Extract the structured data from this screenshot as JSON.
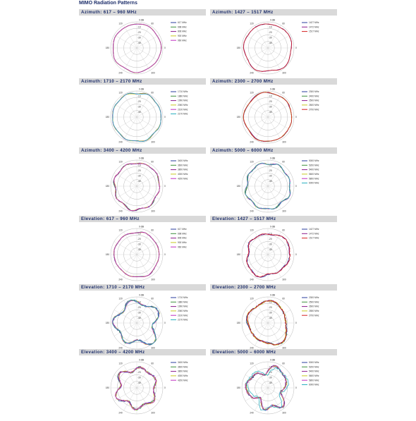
{
  "page": {
    "title": "MIMO Radiation Patterns"
  },
  "chart_data": [
    {
      "type": "polar",
      "title": "Azimuth:  617 – 960 MHz",
      "angle_labels": [
        "0 dBi",
        "60",
        "120",
        "180",
        "240",
        "300",
        "0"
      ],
      "radial_labels": [
        "-10",
        "-20",
        "-30",
        "-40"
      ],
      "legend": [
        "617 MHz",
        "698 MHz",
        "806 MHz",
        "900 MHz",
        "960 MHz"
      ],
      "colors": [
        "#2a3c9e",
        "#3c8f3c",
        "#8b1a8b",
        "#c8c820",
        "#c030c0"
      ],
      "amplitude": 0.92,
      "ripple": 0.03,
      "seed": 1
    },
    {
      "type": "polar",
      "title": "Azimuth: 1427 – 1517 MHz",
      "angle_labels": [
        "0 dBi",
        "60",
        "120",
        "180",
        "240",
        "300",
        "0"
      ],
      "radial_labels": [
        "-10",
        "-20",
        "-30",
        "-40"
      ],
      "legend": [
        "1427 MHz",
        "1472 MHz",
        "1517 MHz"
      ],
      "colors": [
        "#2a3c9e",
        "#8b1a8b",
        "#d42020"
      ],
      "amplitude": 0.92,
      "ripple": 0.05,
      "seed": 2
    },
    {
      "type": "polar",
      "title": "Azimuth: 1710 – 2170 MHz",
      "angle_labels": [
        "0 dBi",
        "60",
        "120",
        "180",
        "240",
        "300",
        "0"
      ],
      "radial_labels": [
        "-10",
        "-20",
        "-30",
        "-40"
      ],
      "legend": [
        "1710 MHz",
        "1880 MHz",
        "1990 MHz",
        "2060 MHz",
        "2100 MHz",
        "2170 MHz"
      ],
      "colors": [
        "#2a3c9e",
        "#3c8f3c",
        "#8b1a8b",
        "#c8c820",
        "#c030c0",
        "#2ab0c0"
      ],
      "amplitude": 0.93,
      "ripple": 0.03,
      "seed": 3
    },
    {
      "type": "polar",
      "title": "Azimuth: 2300 – 2700 MHz",
      "angle_labels": [
        "0 dBi",
        "60",
        "120",
        "180",
        "240",
        "300",
        "0"
      ],
      "radial_labels": [
        "-10",
        "-20",
        "-30",
        "-40"
      ],
      "legend": [
        "2300 MHz",
        "2400 MHz",
        "2500 MHz",
        "2600 MHz",
        "2700 MHz"
      ],
      "colors": [
        "#2a3c9e",
        "#3c8f3c",
        "#8b1a8b",
        "#c8c820",
        "#d42020"
      ],
      "amplitude": 0.92,
      "ripple": 0.04,
      "seed": 4
    },
    {
      "type": "polar",
      "title": "Azimuth: 3400 – 4200 MHz",
      "angle_labels": [
        "0 dBi",
        "60",
        "120",
        "180",
        "240",
        "300",
        "0"
      ],
      "radial_labels": [
        "-10",
        "-20",
        "-30",
        "-40"
      ],
      "legend": [
        "3400 MHz",
        "3600 MHz",
        "3800 MHz",
        "4000 MHz",
        "4200 MHz"
      ],
      "colors": [
        "#2a3c9e",
        "#3c8f3c",
        "#8b1a8b",
        "#c8c820",
        "#c030c0"
      ],
      "amplitude": 0.88,
      "ripple": 0.07,
      "seed": 5
    },
    {
      "type": "polar",
      "title": "Azimuth: 5000 – 6000 MHz",
      "angle_labels": [
        "0 dBi",
        "60",
        "120",
        "180",
        "240",
        "300",
        "0"
      ],
      "radial_labels": [
        "-10",
        "-20",
        "-30",
        "-40"
      ],
      "legend": [
        "5000 MHz",
        "5200 MHz",
        "5400 MHz",
        "5600 MHz",
        "5800 MHz",
        "6000 MHz"
      ],
      "colors": [
        "#2a3c9e",
        "#3c8f3c",
        "#8b1a8b",
        "#c8c820",
        "#c030c0",
        "#2ab0c0"
      ],
      "amplitude": 0.86,
      "ripple": 0.08,
      "seed": 6
    },
    {
      "type": "polar",
      "title": "Elevation:  617 – 960 MHz",
      "angle_labels": [
        "0 dBi",
        "60",
        "120",
        "180",
        "240",
        "300",
        "0"
      ],
      "radial_labels": [
        "-10",
        "-20",
        "-30",
        "-40"
      ],
      "legend": [
        "617 MHz",
        "698 MHz",
        "806 MHz",
        "900 MHz",
        "960 MHz"
      ],
      "colors": [
        "#2a3c9e",
        "#3c8f3c",
        "#8b1a8b",
        "#c8c820",
        "#c030c0"
      ],
      "amplitude": 0.86,
      "ripple": 0.05,
      "seed": 7
    },
    {
      "type": "polar",
      "title": "Elevation: 1427 – 1517 MHz",
      "angle_labels": [
        "0 dBi",
        "60",
        "120",
        "180",
        "240",
        "300",
        "0"
      ],
      "radial_labels": [
        "-10",
        "-20",
        "-30",
        "-40"
      ],
      "legend": [
        "1427 MHz",
        "1472 MHz",
        "1517 MHz"
      ],
      "colors": [
        "#2a3c9e",
        "#8b1a8b",
        "#d42020"
      ],
      "amplitude": 0.82,
      "ripple": 0.12,
      "seed": 8
    },
    {
      "type": "polar",
      "title": "Elevation: 1710 – 2170 MHz",
      "angle_labels": [
        "0 dBi",
        "60",
        "120",
        "180",
        "240",
        "300",
        "0"
      ],
      "radial_labels": [
        "-10",
        "-20",
        "-30",
        "-40"
      ],
      "legend": [
        "1710 MHz",
        "1880 MHz",
        "1990 MHz",
        "2060 MHz",
        "2100 MHz",
        "2170 MHz"
      ],
      "colors": [
        "#2a3c9e",
        "#3c8f3c",
        "#8b1a8b",
        "#c8c820",
        "#c030c0",
        "#2ab0c0"
      ],
      "amplitude": 0.8,
      "ripple": 0.14,
      "seed": 9
    },
    {
      "type": "polar",
      "title": "Elevation: 2300 – 2700 MHz",
      "angle_labels": [
        "0 dBi",
        "60",
        "120",
        "180",
        "240",
        "300",
        "0"
      ],
      "radial_labels": [
        "-10",
        "-20",
        "-30",
        "-40"
      ],
      "legend": [
        "2300 MHz",
        "2500 MHz",
        "2600 MHz",
        "2650 MHz",
        "2700 MHz"
      ],
      "colors": [
        "#2a3c9e",
        "#3c8f3c",
        "#8b1a8b",
        "#c8c820",
        "#d42020"
      ],
      "amplitude": 0.78,
      "ripple": 0.16,
      "seed": 10
    },
    {
      "type": "polar",
      "title": "Elevation: 3400 – 4200 MHz",
      "angle_labels": [
        "0 dBi",
        "60",
        "120",
        "180",
        "240",
        "300",
        "0"
      ],
      "radial_labels": [
        "-10",
        "-20",
        "-30",
        "-40"
      ],
      "legend": [
        "3400 MHz",
        "3600 MHz",
        "3800 MHz",
        "4000 MHz",
        "4200 MHz"
      ],
      "colors": [
        "#2a3c9e",
        "#3c8f3c",
        "#8b1a8b",
        "#c8c820",
        "#c030c0"
      ],
      "amplitude": 0.74,
      "ripple": 0.18,
      "seed": 11
    },
    {
      "type": "polar",
      "title": "Elevation: 5000 – 6000 MHz",
      "angle_labels": [
        "0 dBi",
        "60",
        "120",
        "180",
        "240",
        "300",
        "0"
      ],
      "radial_labels": [
        "-10",
        "-20",
        "-30",
        "-40"
      ],
      "legend": [
        "5000 MHz",
        "5200 MHz",
        "5400 MHz",
        "5600 MHz",
        "5800 MHz",
        "6000 MHz"
      ],
      "colors": [
        "#2a3c9e",
        "#3c8f3c",
        "#8b1a8b",
        "#c8c820",
        "#c030c0",
        "#2ab0c0"
      ],
      "amplitude": 0.72,
      "ripple": 0.2,
      "seed": 12
    }
  ]
}
